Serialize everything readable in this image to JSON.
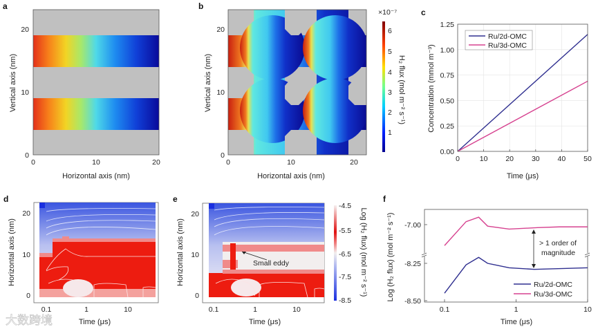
{
  "panel_labels": {
    "a": "a",
    "b": "b",
    "c": "c",
    "d": "d",
    "e": "e",
    "f": "f"
  },
  "watermark": "大数跨境",
  "colors": {
    "ru2d": "#2e2e8f",
    "ru3d": "#d6418f",
    "gray": "#c0c0c0"
  },
  "chart_data": [
    {
      "id": "a",
      "type": "heatmap",
      "xlabel": "Horizontal axis (nm)",
      "ylabel": "Vertical axis (nm)",
      "xticks": [
        "0",
        "10",
        "20"
      ],
      "yticks": [
        "0",
        "10",
        "20"
      ],
      "xlim": [
        0,
        23
      ],
      "ylim": [
        0,
        23
      ],
      "description_value": "H2 flux in two straight channels, high (red) at x=0 decreasing to low (blue) at x=23"
    },
    {
      "id": "b",
      "type": "heatmap",
      "xlabel": "Horizontal axis (nm)",
      "ylabel": "Vertical axis (nm)",
      "xticks": [
        "0",
        "10",
        "20"
      ],
      "yticks": [
        "0",
        "10",
        "20"
      ],
      "xlim": [
        0,
        23
      ],
      "ylim": [
        0,
        23
      ],
      "colorbar": {
        "label": "H₂ flux (mol m⁻² s⁻¹)",
        "multiplier": "×10⁻⁷",
        "ticks": [
          "6",
          "5",
          "4",
          "3",
          "2",
          "1"
        ],
        "range": [
          0,
          6.5
        ]
      }
    },
    {
      "id": "c",
      "type": "line",
      "xlabel": "Time (μs)",
      "ylabel": "Concentration (mmol m⁻³)",
      "xlim": [
        0,
        50
      ],
      "ylim": [
        0,
        1.25
      ],
      "xticks": [
        "0",
        "10",
        "20",
        "30",
        "40",
        "50"
      ],
      "yticks": [
        "0.00",
        "0.25",
        "0.50",
        "0.75",
        "1.00",
        "1.25"
      ],
      "legend_position": "top-left",
      "grid": true,
      "series": [
        {
          "name": "Ru/2d-OMC",
          "x": [
            0,
            50
          ],
          "y": [
            0,
            1.15
          ]
        },
        {
          "name": "Ru/3d-OMC",
          "x": [
            0,
            50
          ],
          "y": [
            0,
            0.69
          ]
        }
      ]
    },
    {
      "id": "d",
      "type": "heatmap",
      "xlabel": "Time (μs)",
      "ylabel": "Horizontal axis (nm)",
      "xscale": "log",
      "xlim": [
        0.068,
        50
      ],
      "ylim": [
        -0.5,
        23
      ],
      "xticks": [
        "0.1",
        "1",
        "10"
      ],
      "yticks": [
        "0",
        "10",
        "20"
      ]
    },
    {
      "id": "e",
      "type": "heatmap",
      "xlabel": "Time (μs)",
      "ylabel": "Horizontal axis (nm)",
      "xscale": "log",
      "xlim": [
        0.068,
        50
      ],
      "ylim": [
        -0.5,
        23
      ],
      "xticks": [
        "0.1",
        "1",
        "10"
      ],
      "yticks": [
        "0",
        "10",
        "20"
      ],
      "annotation": "Small eddy",
      "colorbar": {
        "label": "Log (H₂ flux) (mol m⁻² s⁻¹)",
        "ticks": [
          "-4.5",
          "-5.5",
          "-6.5",
          "-7.5",
          "-8.5"
        ],
        "range": [
          -8.5,
          -4.5
        ]
      }
    },
    {
      "id": "f",
      "type": "line",
      "xlabel": "Time (μs)",
      "ylabel": "Log (H₂ flux) (mol m⁻² s⁻¹)",
      "xscale": "log",
      "xlim": [
        0.1,
        10
      ],
      "xticks": [
        "0.1",
        "1",
        "10"
      ],
      "yticks": [
        "-7.00",
        "-8.25",
        "-8.50"
      ],
      "broken_axis": true,
      "legend_position": "bottom-right",
      "annotation_lines": [
        "> 1 order of",
        "magnitude"
      ],
      "series": [
        {
          "name": "Ru/2d-OMC",
          "x": [
            0.1,
            0.2,
            0.3,
            0.4,
            0.8,
            1.8,
            10
          ],
          "y": [
            -8.45,
            -8.26,
            -8.21,
            -8.25,
            -8.28,
            -8.29,
            -8.28
          ]
        },
        {
          "name": "Ru/3d-OMC",
          "x": [
            0.1,
            0.2,
            0.3,
            0.4,
            0.8,
            2,
            4,
            10
          ],
          "y": [
            -7.14,
            -6.98,
            -6.95,
            -7.01,
            -7.03,
            -7.02,
            -7.015,
            -7.015
          ]
        }
      ]
    }
  ]
}
